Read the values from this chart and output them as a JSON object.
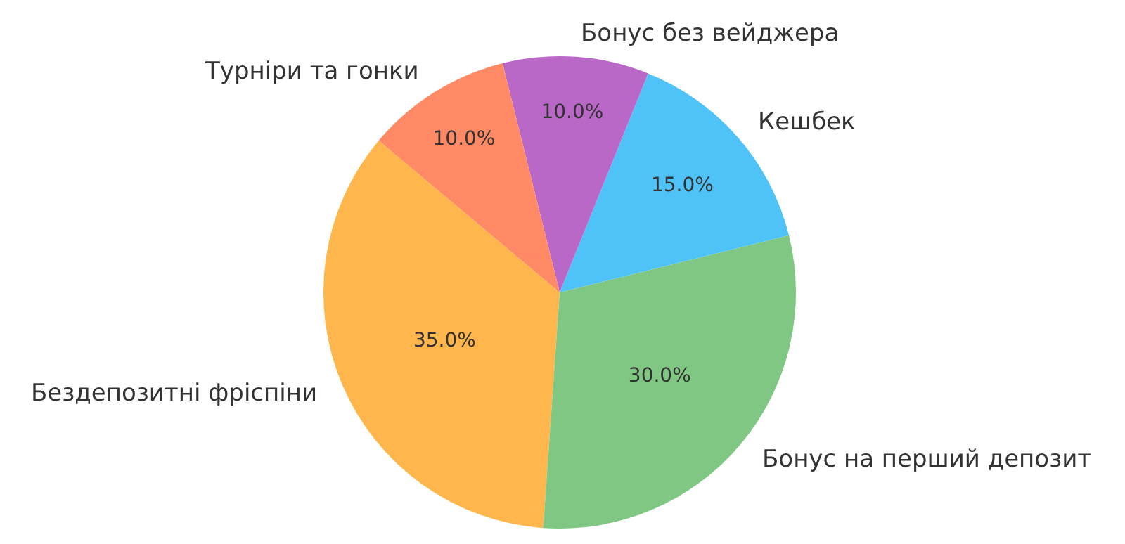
{
  "chart_data": {
    "type": "pie",
    "categories": [
      "Бездепозитні фріспіни",
      "Бонус на перший депозит",
      "Кешбек",
      "Бонус без вейджера",
      "Турніри та гонки"
    ],
    "values": [
      35,
      30,
      15,
      10,
      10
    ],
    "colors": [
      "#ffb74d",
      "#81c784",
      "#4fc3f7",
      "#ba68c8",
      "#ff8a65"
    ],
    "value_labels": [
      "35.0%",
      "30.0%",
      "15.0%",
      "10.0%",
      "10.0%"
    ],
    "legend": false
  }
}
